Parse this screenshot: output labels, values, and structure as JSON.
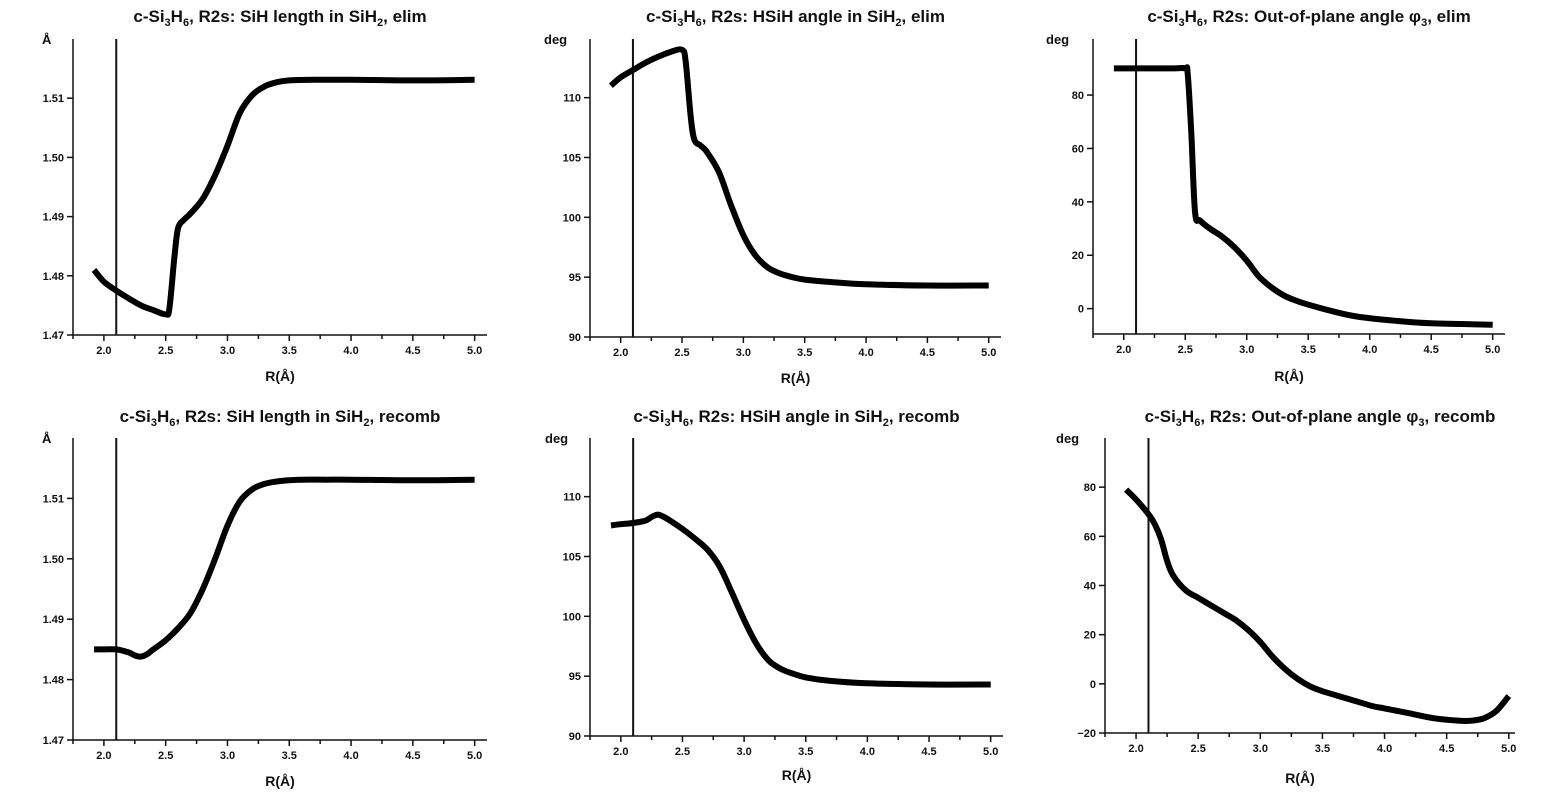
{
  "chart_data": [
    {
      "type": "line",
      "title": {
        "prefix": "c-Si",
        "sub1": "3",
        "mid": "H",
        "sub2": "6",
        "rest": ", R2s: SiH length in SiH",
        "sub3": "2",
        "suffix": ", elim"
      },
      "xlabel": "R(Å)",
      "ylabel": "Å",
      "xlim": [
        1.75,
        5.1
      ],
      "ylim": [
        1.47,
        1.52
      ],
      "xticks": [
        "2.0",
        "2.5",
        "3.0",
        "3.5",
        "4.0",
        "4.5",
        "5.0"
      ],
      "yticks": [
        "1.47",
        "1.48",
        "1.49",
        "1.50",
        "1.51"
      ],
      "vline": 2.1,
      "x": [
        1.92,
        2.0,
        2.1,
        2.2,
        2.3,
        2.4,
        2.5,
        2.53,
        2.57,
        2.6,
        2.65,
        2.7,
        2.8,
        2.9,
        3.0,
        3.1,
        3.2,
        3.3,
        3.4,
        3.5,
        3.7,
        4.0,
        4.5,
        5.0
      ],
      "y": [
        1.481,
        1.479,
        1.4775,
        1.4762,
        1.475,
        1.4742,
        1.4735,
        1.4745,
        1.483,
        1.488,
        1.4895,
        1.4905,
        1.493,
        1.497,
        1.502,
        1.5075,
        1.5105,
        1.512,
        1.5127,
        1.513,
        1.5131,
        1.5131,
        1.513,
        1.5131
      ]
    },
    {
      "type": "line",
      "title": {
        "prefix": "c-Si",
        "sub1": "3",
        "mid": "H",
        "sub2": "6",
        "rest": ", R2s: HSiH angle in SiH",
        "sub3": "2",
        "suffix": ", elim"
      },
      "xlabel": "R(Å)",
      "ylabel": "deg",
      "xlim": [
        1.75,
        5.1
      ],
      "ylim": [
        90,
        114.9
      ],
      "xticks": [
        "2.0",
        "2.5",
        "3.0",
        "3.5",
        "4.0",
        "4.5",
        "5.0"
      ],
      "yticks": [
        "90",
        "95",
        "100",
        "105",
        "110"
      ],
      "vline": 2.1,
      "x": [
        1.92,
        2.0,
        2.1,
        2.2,
        2.3,
        2.4,
        2.5,
        2.53,
        2.57,
        2.6,
        2.65,
        2.7,
        2.8,
        2.9,
        3.0,
        3.1,
        3.2,
        3.3,
        3.4,
        3.5,
        3.7,
        4.0,
        4.5,
        5.0
      ],
      "y": [
        111.0,
        111.7,
        112.3,
        112.9,
        113.4,
        113.8,
        114.0,
        113.0,
        108.5,
        106.5,
        106.0,
        105.5,
        103.8,
        101.0,
        98.5,
        96.8,
        95.8,
        95.3,
        95.0,
        94.8,
        94.6,
        94.4,
        94.3,
        94.3
      ]
    },
    {
      "type": "line",
      "title": {
        "prefix": "c-Si",
        "sub1": "3",
        "mid": "H",
        "sub2": "6",
        "rest": ", R2s: Out-of-plane angle φ",
        "sub3": "3",
        "suffix": ", elim"
      },
      "xlabel": "R(Å)",
      "ylabel": "deg",
      "xlim": [
        1.75,
        5.1
      ],
      "ylim": [
        -9.5,
        101
      ],
      "xticks": [
        "2.0",
        "2.5",
        "3.0",
        "3.5",
        "4.0",
        "4.5",
        "5.0"
      ],
      "yticks": [
        "0",
        "20",
        "40",
        "60",
        "80"
      ],
      "vline": 2.1,
      "x": [
        1.92,
        2.0,
        2.1,
        2.2,
        2.3,
        2.4,
        2.5,
        2.52,
        2.55,
        2.58,
        2.62,
        2.7,
        2.8,
        2.9,
        3.0,
        3.1,
        3.2,
        3.3,
        3.4,
        3.5,
        3.7,
        3.9,
        4.2,
        4.5,
        5.0
      ],
      "y": [
        90,
        90,
        90,
        90,
        90,
        90,
        90,
        88,
        65,
        36,
        33,
        30,
        27,
        23,
        18,
        12,
        8,
        5,
        3,
        1.5,
        -1,
        -3,
        -4.5,
        -5.5,
        -6
      ]
    },
    {
      "type": "line",
      "title": {
        "prefix": "c-Si",
        "sub1": "3",
        "mid": "H",
        "sub2": "6",
        "rest": ", R2s: SiH length in SiH",
        "sub3": "2",
        "suffix": ", recomb"
      },
      "xlabel": "R(Å)",
      "ylabel": "Å",
      "xlim": [
        1.75,
        5.1
      ],
      "ylim": [
        1.47,
        1.52
      ],
      "xticks": [
        "2.0",
        "2.5",
        "3.0",
        "3.5",
        "4.0",
        "4.5",
        "5.0"
      ],
      "yticks": [
        "1.47",
        "1.48",
        "1.49",
        "1.50",
        "1.51"
      ],
      "vline": 2.1,
      "x": [
        1.92,
        2.0,
        2.1,
        2.2,
        2.25,
        2.3,
        2.35,
        2.4,
        2.5,
        2.6,
        2.7,
        2.8,
        2.9,
        3.0,
        3.1,
        3.2,
        3.3,
        3.4,
        3.5,
        3.6,
        3.8,
        4.0,
        4.5,
        5.0
      ],
      "y": [
        1.485,
        1.485,
        1.485,
        1.4845,
        1.484,
        1.4838,
        1.4842,
        1.485,
        1.4865,
        1.4885,
        1.491,
        1.495,
        1.5,
        1.5055,
        1.5095,
        1.5115,
        1.5124,
        1.5128,
        1.513,
        1.5131,
        1.5131,
        1.5131,
        1.513,
        1.5131
      ]
    },
    {
      "type": "line",
      "title": {
        "prefix": "c-Si",
        "sub1": "3",
        "mid": "H",
        "sub2": "6",
        "rest": ", R2s: HSiH angle in SiH",
        "sub3": "2",
        "suffix": ", recomb"
      },
      "xlabel": "R(Å)",
      "ylabel": "deg",
      "xlim": [
        1.75,
        5.1
      ],
      "ylim": [
        90,
        114.9
      ],
      "xticks": [
        "2.0",
        "2.5",
        "3.0",
        "3.5",
        "4.0",
        "4.5",
        "5.0"
      ],
      "yticks": [
        "90",
        "95",
        "100",
        "105",
        "110"
      ],
      "vline": 2.1,
      "x": [
        1.92,
        2.0,
        2.1,
        2.2,
        2.25,
        2.3,
        2.35,
        2.4,
        2.5,
        2.6,
        2.7,
        2.8,
        2.9,
        3.0,
        3.1,
        3.2,
        3.3,
        3.4,
        3.5,
        3.7,
        4.0,
        4.5,
        5.0
      ],
      "y": [
        107.6,
        107.7,
        107.8,
        108.0,
        108.3,
        108.5,
        108.3,
        108.0,
        107.3,
        106.5,
        105.6,
        104.2,
        102.0,
        99.7,
        97.7,
        96.3,
        95.6,
        95.2,
        94.9,
        94.6,
        94.4,
        94.3,
        94.3
      ]
    },
    {
      "type": "line",
      "title": {
        "prefix": "c-Si",
        "sub1": "3",
        "mid": "H",
        "sub2": "6",
        "rest": ", R2s: Out-of-plane angle φ",
        "sub3": "3",
        "suffix": ", recomb"
      },
      "xlabel": "R(Å)",
      "ylabel": "deg",
      "xlim": [
        1.75,
        5.05
      ],
      "ylim": [
        -20,
        100
      ],
      "xticks": [
        "2.0",
        "2.5",
        "3.0",
        "3.5",
        "4.0",
        "4.5",
        "5.0"
      ],
      "yticks": [
        "−20",
        "0",
        "20",
        "40",
        "60",
        "80"
      ],
      "vline": 2.1,
      "x": [
        1.92,
        2.0,
        2.1,
        2.15,
        2.2,
        2.25,
        2.3,
        2.4,
        2.5,
        2.6,
        2.7,
        2.8,
        2.9,
        3.0,
        3.1,
        3.2,
        3.3,
        3.4,
        3.5,
        3.7,
        3.9,
        4.0,
        4.2,
        4.4,
        4.6,
        4.7,
        4.8,
        4.9,
        5.0
      ],
      "y": [
        79,
        75,
        69,
        65,
        59,
        50,
        44,
        38,
        35,
        32,
        29,
        26,
        22,
        17,
        11,
        6,
        2,
        -1,
        -3,
        -6,
        -9,
        -10,
        -12,
        -14,
        -15,
        -15,
        -14,
        -11,
        -5
      ]
    }
  ]
}
